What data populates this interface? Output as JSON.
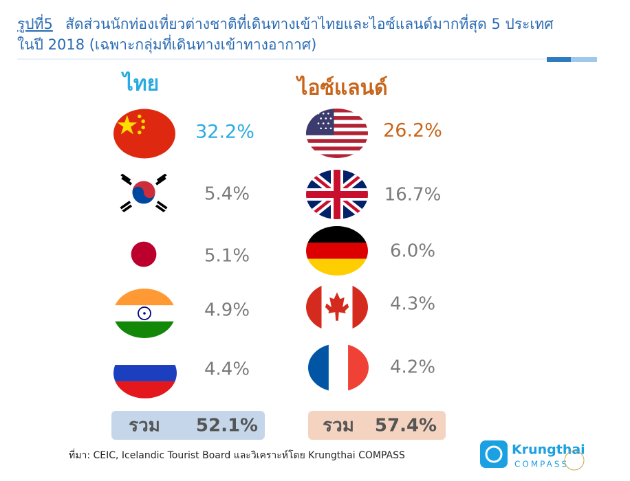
{
  "header": {
    "figure_label": "รูปที่5",
    "title_line1": "สัดส่วนนักท่องเที่ยวต่างชาติที่เดินทางเข้าไทยและไอซ์แลนด์มากที่สุด 5 ประเทศ",
    "title_line2": "ในปี 2018 (เฉพาะกลุ่มที่เดินทางเข้าทางอากาศ)"
  },
  "thailand": {
    "heading": "ไทย",
    "shares": [
      "32.2%",
      "5.4%",
      "5.1%",
      "4.9%",
      "4.4%"
    ],
    "total_label": "รวม",
    "total": "52.1%"
  },
  "iceland": {
    "heading": "ไอซ์แลนด์",
    "shares": [
      "26.2%",
      "16.7%",
      "6.0%",
      "4.3%",
      "4.2%"
    ],
    "total_label": "รวม",
    "total": "57.4%"
  },
  "source": "ที่มา: CEIC, Icelandic Tourist Board และวิเคราะห์โดย Krungthai COMPASS",
  "logo": {
    "name": "Krungthai",
    "sub": "COMPASS"
  }
}
